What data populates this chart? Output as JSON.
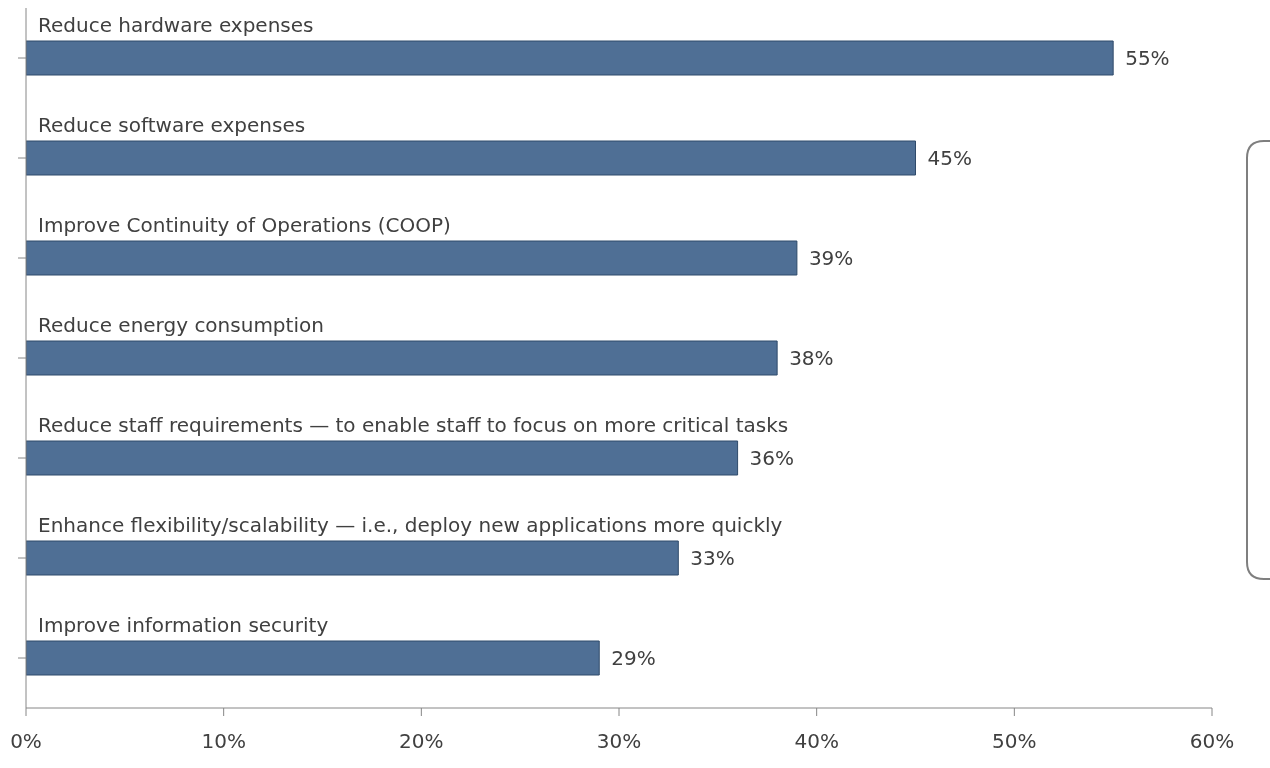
{
  "chart_data": {
    "type": "bar",
    "orientation": "horizontal",
    "categories": [
      "Reduce hardware expenses",
      "Reduce software expenses",
      "Improve Continuity of Operations (COOP)",
      "Reduce energy consumption",
      "Reduce staff requirements — to enable staff to focus on more critical tasks",
      "Enhance flexibility/scalability — i.e., deploy new applications more quickly",
      "Improve information security"
    ],
    "values": [
      55,
      45,
      39,
      38,
      36,
      33,
      29
    ],
    "value_labels": [
      "55%",
      "45%",
      "39%",
      "38%",
      "36%",
      "33%",
      "29%"
    ],
    "color": "#4f6f95",
    "xlim": [
      0,
      60
    ],
    "xticks": [
      {
        "value": 0,
        "label": "0%"
      },
      {
        "value": 10,
        "label": "10%"
      },
      {
        "value": 20,
        "label": "20%"
      },
      {
        "value": 30,
        "label": "30%"
      },
      {
        "value": 40,
        "label": "40%"
      },
      {
        "value": 50,
        "label": "50%"
      },
      {
        "value": 60,
        "label": "60%"
      }
    ],
    "grid": false
  }
}
